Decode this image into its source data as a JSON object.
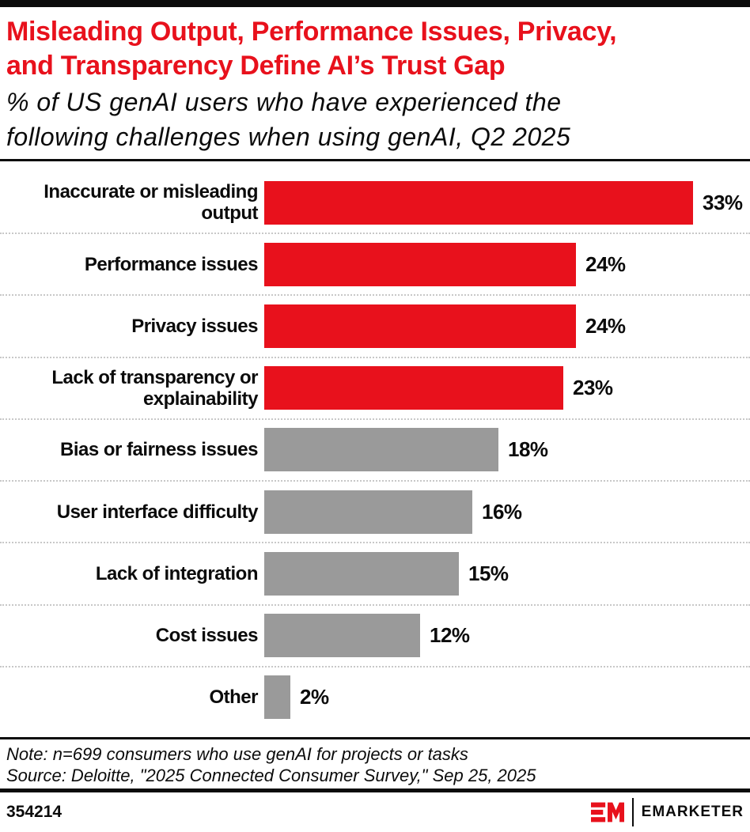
{
  "colors": {
    "brand_red": "#E8111C",
    "bar_gray": "#9A9A9A",
    "text_black": "#0B0B0B",
    "dotted_separator": "#C8C8C8"
  },
  "header": {
    "title_line1": "Misleading Output, Performance Issues, Privacy,",
    "title_line2": "and Transparency Define AI’s Trust Gap",
    "subtitle_line1": "% of US genAI users who have experienced the",
    "subtitle_line2": "following challenges when using genAI, Q2 2025"
  },
  "chart_data": {
    "type": "bar",
    "orientation": "horizontal",
    "title": "Misleading Output, Performance Issues, Privacy, and Transparency Define AI’s Trust Gap",
    "subtitle": "% of US genAI users who have experienced the following challenges when using genAI, Q2 2025",
    "unit": "%",
    "xlim": [
      0,
      36
    ],
    "grid": false,
    "legend": "none",
    "categories": [
      "Inaccurate or misleading output",
      "Performance issues",
      "Privacy issues",
      "Lack of transparency or explainability",
      "Bias or fairness issues",
      "User interface difficulty",
      "Lack of integration",
      "Cost issues",
      "Other"
    ],
    "values": [
      33,
      24,
      24,
      23,
      18,
      16,
      15,
      12,
      2
    ],
    "value_labels": [
      "33%",
      "24%",
      "24%",
      "23%",
      "18%",
      "16%",
      "15%",
      "12%",
      "2%"
    ],
    "bar_colors": [
      "#E8111C",
      "#E8111C",
      "#E8111C",
      "#E8111C",
      "#9A9A9A",
      "#9A9A9A",
      "#9A9A9A",
      "#9A9A9A",
      "#9A9A9A"
    ]
  },
  "footnote": {
    "note": "Note: n=699 consumers who use genAI for projects or tasks",
    "source": "Source: Deloitte, \"2025 Connected Consumer Survey,\" Sep 25, 2025"
  },
  "footer": {
    "chart_id": "354214",
    "brand_name": "EMARKETER"
  }
}
